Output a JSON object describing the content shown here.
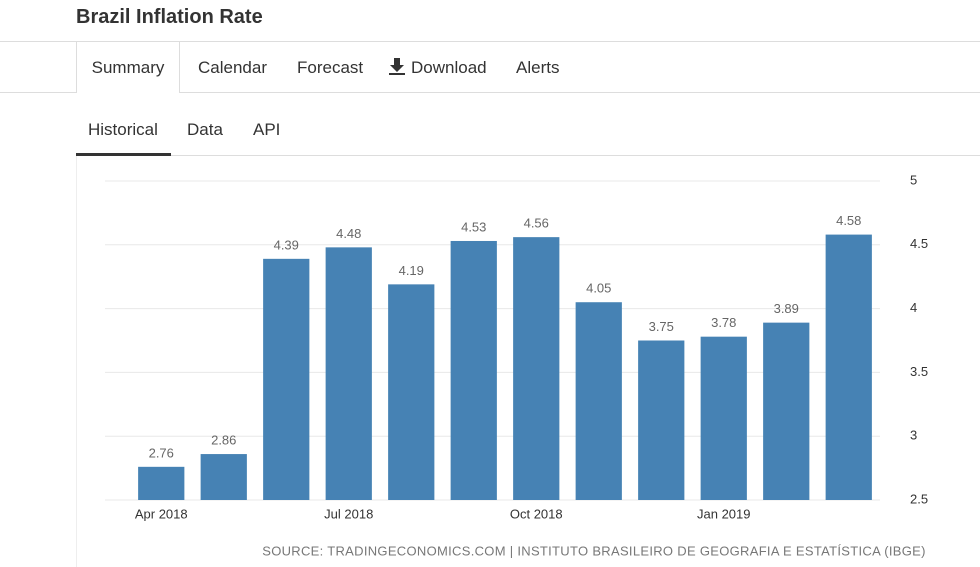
{
  "header": {
    "title": "Brazil Inflation Rate",
    "tabs": [
      "Summary",
      "Calendar",
      "Forecast",
      "Download",
      "Alerts"
    ],
    "subtabs": [
      "Historical",
      "Data",
      "API"
    ]
  },
  "chart_data": {
    "type": "bar",
    "categories": [
      "Apr 2018",
      null,
      null,
      "Jul 2018",
      null,
      null,
      "Oct 2018",
      null,
      null,
      "Jan 2019",
      null,
      null
    ],
    "values": [
      2.76,
      2.86,
      4.39,
      4.48,
      4.19,
      4.53,
      4.56,
      4.05,
      3.75,
      3.78,
      3.89,
      4.58
    ],
    "color": "#4682b4",
    "ylim": [
      2.5,
      5
    ],
    "yticks": [
      2.5,
      3,
      3.5,
      4,
      4.5,
      5
    ],
    "grid": true,
    "source": "SOURCE: TRADINGECONOMICS.COM | INSTITUTO BRASILEIRO DE GEOGRAFIA E ESTATÍSTICA (IBGE)"
  }
}
